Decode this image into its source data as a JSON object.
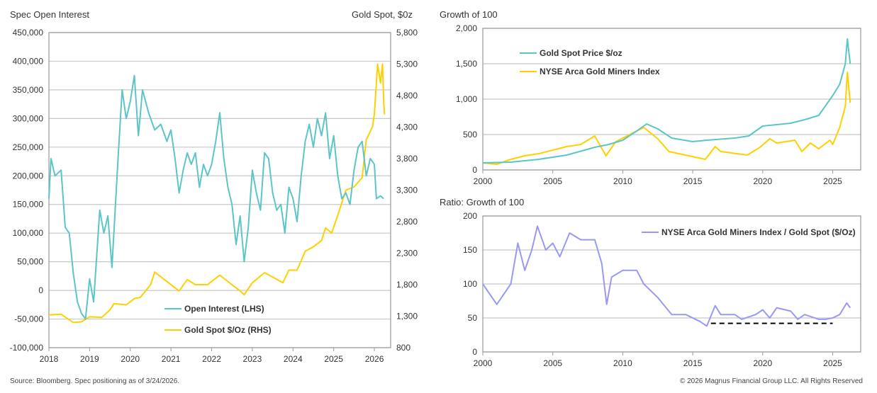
{
  "source": "Source: Bloomberg. Spec positioning as of 3/24/2026.",
  "copyright": "© 2026 Magnus Financial Group LLC. All Rights Reserved",
  "chart_data": [
    {
      "type": "line",
      "title_left": "Spec Open Interest",
      "title_right": "Gold Spot, $0z",
      "x_ticks": [
        "2018",
        "2019",
        "2020",
        "2021",
        "2022",
        "2023",
        "2024",
        "2025",
        "2026"
      ],
      "y_left_ticks": [
        "-100,000",
        "-50,000",
        "0",
        "50,000",
        "100,000",
        "150,000",
        "200,000",
        "250,000",
        "300,000",
        "350,000",
        "400,000",
        "450,000"
      ],
      "y_right_ticks": [
        "800",
        "1,300",
        "1,800",
        "2,300",
        "2,800",
        "3,300",
        "3,800",
        "4,300",
        "4,800",
        "5,300",
        "5,800"
      ],
      "ylim_left": [
        -100000,
        450000
      ],
      "ylim_right": [
        800,
        5800
      ],
      "xlim": [
        2018,
        2026.4
      ],
      "grid": true,
      "series": [
        {
          "name": "Open Interest (LHS)",
          "axis": "left",
          "color": "#5BC5C8",
          "x": [
            2018,
            2018.05,
            2018.15,
            2018.3,
            2018.4,
            2018.5,
            2018.6,
            2018.7,
            2018.8,
            2018.9,
            2019,
            2019.1,
            2019.25,
            2019.35,
            2019.45,
            2019.55,
            2019.7,
            2019.8,
            2019.9,
            2020,
            2020.1,
            2020.2,
            2020.3,
            2020.45,
            2020.6,
            2020.75,
            2020.9,
            2021,
            2021.1,
            2021.2,
            2021.3,
            2021.4,
            2021.5,
            2021.6,
            2021.7,
            2021.8,
            2021.9,
            2022,
            2022.1,
            2022.2,
            2022.3,
            2022.4,
            2022.5,
            2022.6,
            2022.7,
            2022.8,
            2022.9,
            2023,
            2023.1,
            2023.2,
            2023.3,
            2023.4,
            2023.5,
            2023.6,
            2023.7,
            2023.8,
            2023.9,
            2024,
            2024.1,
            2024.2,
            2024.3,
            2024.4,
            2024.5,
            2024.6,
            2024.7,
            2024.8,
            2024.9,
            2025,
            2025.1,
            2025.2,
            2025.3,
            2025.4,
            2025.5,
            2025.6,
            2025.7,
            2025.8,
            2025.9,
            2026,
            2026.05,
            2026.15,
            2026.23
          ],
          "y": [
            160000,
            230000,
            200000,
            210000,
            110000,
            100000,
            30000,
            -20000,
            -40000,
            -50000,
            20000,
            -20000,
            140000,
            100000,
            130000,
            40000,
            230000,
            350000,
            300000,
            330000,
            375000,
            270000,
            350000,
            310000,
            280000,
            290000,
            260000,
            280000,
            230000,
            170000,
            210000,
            240000,
            220000,
            240000,
            180000,
            220000,
            200000,
            220000,
            260000,
            310000,
            230000,
            180000,
            150000,
            80000,
            130000,
            50000,
            110000,
            210000,
            170000,
            140000,
            240000,
            230000,
            170000,
            140000,
            150000,
            100000,
            180000,
            160000,
            120000,
            200000,
            260000,
            290000,
            250000,
            300000,
            270000,
            310000,
            230000,
            270000,
            200000,
            160000,
            170000,
            150000,
            210000,
            250000,
            260000,
            200000,
            230000,
            220000,
            160000,
            165000,
            160000
          ]
        },
        {
          "name": "Gold Spot $/Oz (RHS)",
          "axis": "right",
          "color": "#FFD000",
          "x": [
            2018,
            2018.3,
            2018.6,
            2018.8,
            2019,
            2019.3,
            2019.5,
            2019.6,
            2019.9,
            2020.1,
            2020.25,
            2020.5,
            2020.6,
            2020.9,
            2021.2,
            2021.4,
            2021.6,
            2021.9,
            2022.2,
            2022.4,
            2022.7,
            2022.8,
            2023,
            2023.3,
            2023.5,
            2023.75,
            2023.9,
            2024.1,
            2024.3,
            2024.5,
            2024.7,
            2024.8,
            2024.95,
            2025.1,
            2025.3,
            2025.5,
            2025.7,
            2025.8,
            2025.95,
            2026,
            2026.08,
            2026.15,
            2026.2,
            2026.23,
            2026.25
          ],
          "y": [
            1320,
            1330,
            1200,
            1210,
            1290,
            1280,
            1400,
            1500,
            1480,
            1580,
            1600,
            1800,
            2000,
            1850,
            1700,
            1880,
            1800,
            1800,
            1950,
            1850,
            1700,
            1640,
            1830,
            1990,
            1920,
            1830,
            2030,
            2030,
            2330,
            2400,
            2500,
            2700,
            2620,
            2900,
            3300,
            3350,
            3500,
            4100,
            4300,
            4500,
            5300,
            5000,
            5300,
            4700,
            4500
          ]
        }
      ]
    },
    {
      "type": "line",
      "title": "Growth of 100",
      "x_ticks": [
        "2000",
        "2005",
        "2010",
        "2015",
        "2020",
        "2025"
      ],
      "y_ticks": [
        "0",
        "500",
        "1,000",
        "1,500",
        "2,000"
      ],
      "xlim": [
        2000,
        2027
      ],
      "ylim": [
        0,
        2000
      ],
      "grid": true,
      "legend": "top-left",
      "series": [
        {
          "name": "Gold Spot Price $/oz",
          "color": "#5BC5C8",
          "x": [
            2000,
            2002,
            2004,
            2006,
            2008,
            2009,
            2010,
            2011,
            2011.7,
            2012.5,
            2013.5,
            2015,
            2016,
            2018,
            2019,
            2020,
            2021,
            2022,
            2023,
            2024,
            2025,
            2025.5,
            2025.9,
            2026.05,
            2026.25
          ],
          "y": [
            100,
            110,
            150,
            210,
            320,
            360,
            420,
            550,
            650,
            580,
            450,
            400,
            420,
            450,
            480,
            620,
            640,
            660,
            710,
            770,
            1050,
            1210,
            1500,
            1850,
            1500
          ]
        },
        {
          "name": "NYSE Arca Gold Miners Index",
          "color": "#FFD000",
          "x": [
            2000,
            2001,
            2002,
            2003,
            2004,
            2006,
            2007,
            2008,
            2008.8,
            2009.5,
            2010.5,
            2011.5,
            2012.5,
            2013.3,
            2014,
            2015.9,
            2016.6,
            2017,
            2018.9,
            2019.8,
            2020.5,
            2021,
            2022.3,
            2022.8,
            2023.4,
            2024,
            2024.8,
            2025,
            2025.5,
            2025.9,
            2026.05,
            2026.25
          ],
          "y": [
            100,
            80,
            150,
            200,
            230,
            330,
            360,
            480,
            200,
            400,
            500,
            600,
            440,
            260,
            230,
            150,
            330,
            260,
            210,
            320,
            440,
            380,
            420,
            260,
            380,
            300,
            420,
            360,
            600,
            900,
            1380,
            950
          ]
        }
      ]
    },
    {
      "type": "line",
      "title": "Ratio: Growth of 100",
      "x_ticks": [
        "2000",
        "2005",
        "2010",
        "2015",
        "2020",
        "2025"
      ],
      "y_ticks": [
        "0",
        "50",
        "100",
        "150",
        "200"
      ],
      "xlim": [
        2000,
        2027
      ],
      "ylim": [
        0,
        200
      ],
      "grid": true,
      "legend": "top-right",
      "series": [
        {
          "name": "NYSE Arca Gold Miners Index / Gold Spot ($/Oz)",
          "color": "#9999F5",
          "x": [
            2000,
            2001,
            2002,
            2002.5,
            2003,
            2003.5,
            2003.9,
            2004.5,
            2005,
            2005.5,
            2006.2,
            2007,
            2008,
            2008.5,
            2008.85,
            2009.2,
            2010,
            2011,
            2011.5,
            2012.5,
            2013.5,
            2014.5,
            2015.5,
            2016,
            2016.6,
            2017,
            2018,
            2018.5,
            2019.5,
            2020,
            2020.5,
            2021,
            2022,
            2022.5,
            2023,
            2024,
            2024.5,
            2025,
            2025.5,
            2026,
            2026.25
          ],
          "y": [
            100,
            70,
            100,
            160,
            120,
            150,
            185,
            150,
            160,
            140,
            175,
            165,
            165,
            130,
            70,
            110,
            120,
            120,
            100,
            80,
            55,
            55,
            45,
            38,
            68,
            55,
            55,
            48,
            55,
            62,
            50,
            65,
            60,
            48,
            55,
            48,
            48,
            50,
            55,
            72,
            65
          ]
        }
      ],
      "support_line": {
        "x": [
          2016.3,
          2025
        ],
        "y": 42,
        "style": "dashed",
        "color": "#000000"
      }
    }
  ]
}
